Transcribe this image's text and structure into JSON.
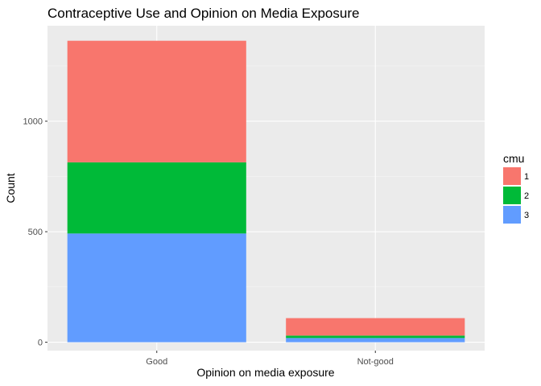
{
  "chart_data": {
    "type": "bar",
    "stacked": true,
    "title": "Contraceptive Use and Opinion on Media Exposure",
    "xlabel": "Opinion on media exposure",
    "ylabel": "Count",
    "categories": [
      "Good",
      "Not-good"
    ],
    "series": [
      {
        "name": "1",
        "color": "#F8766D",
        "values": [
          550,
          79
        ]
      },
      {
        "name": "2",
        "color": "#00BA38",
        "values": [
          322,
          11
        ]
      },
      {
        "name": "3",
        "color": "#619CFF",
        "values": [
          492,
          19
        ]
      }
    ],
    "ylim": [
      -38,
      1432
    ],
    "yticks": [
      0,
      500,
      1000
    ],
    "grid": true,
    "panel_background": "#EBEBEB",
    "legend": {
      "title": "cmu",
      "position": "right"
    }
  }
}
